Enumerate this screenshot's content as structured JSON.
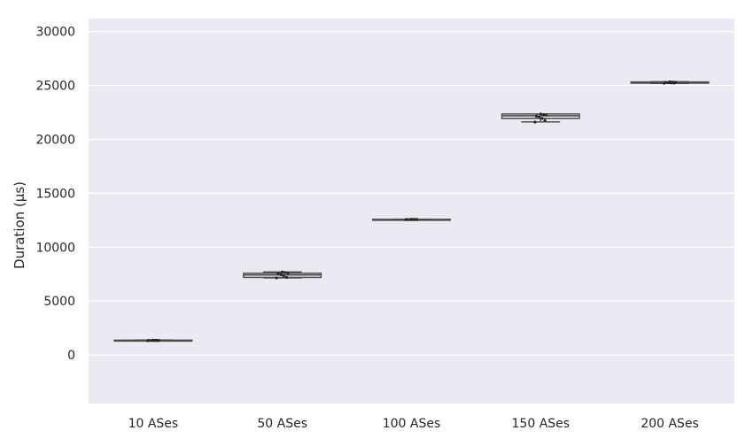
{
  "chart_data": {
    "type": "box",
    "title": "",
    "xlabel": "",
    "ylabel": "Duration (µs)",
    "ylim": [
      -4500,
      31200
    ],
    "yticks": [
      0,
      5000,
      10000,
      15000,
      20000,
      25000,
      30000
    ],
    "grid": true,
    "categories": [
      "10 ASes",
      "50 ASes",
      "100 ASes",
      "150 ASes",
      "200 ASes"
    ],
    "boxes": [
      {
        "category": "10 ASes",
        "whisker_low": 1320,
        "q1": 1330,
        "median": 1350,
        "q3": 1375,
        "whisker_high": 1390,
        "points": [
          1330,
          1340,
          1345,
          1350,
          1355,
          1360,
          1370,
          1380
        ]
      },
      {
        "category": "50 ASes",
        "whisker_low": 7150,
        "q1": 7200,
        "median": 7420,
        "q3": 7580,
        "whisker_high": 7700,
        "points": [
          7150,
          7200,
          7350,
          7450,
          7550,
          7600,
          7650,
          7700
        ]
      },
      {
        "category": "100 ASes",
        "whisker_low": 12540,
        "q1": 12550,
        "median": 12565,
        "q3": 12580,
        "whisker_high": 12590,
        "points": [
          12550,
          12555,
          12560,
          12565,
          12570,
          12575,
          12580,
          12585
        ]
      },
      {
        "category": "150 ASes",
        "whisker_low": 21620,
        "q1": 21950,
        "median": 22180,
        "q3": 22350,
        "whisker_high": 22350,
        "points": [
          21600,
          21750,
          21950,
          22050,
          22150,
          22250,
          22300,
          22350
        ]
      },
      {
        "category": "200 ASes",
        "whisker_low": 25190,
        "q1": 25210,
        "median": 25250,
        "q3": 25320,
        "whisker_high": 25340,
        "points": [
          25210,
          25220,
          25240,
          25250,
          25270,
          25290,
          25310,
          25330
        ]
      }
    ]
  },
  "colors": {
    "plot_background": "#eaeaf2",
    "gridline": "#ffffff",
    "box_fill": "#eaeaf2",
    "box_edge": "#4d4d4d",
    "median": "#4d4d4d",
    "points": "#262626"
  }
}
